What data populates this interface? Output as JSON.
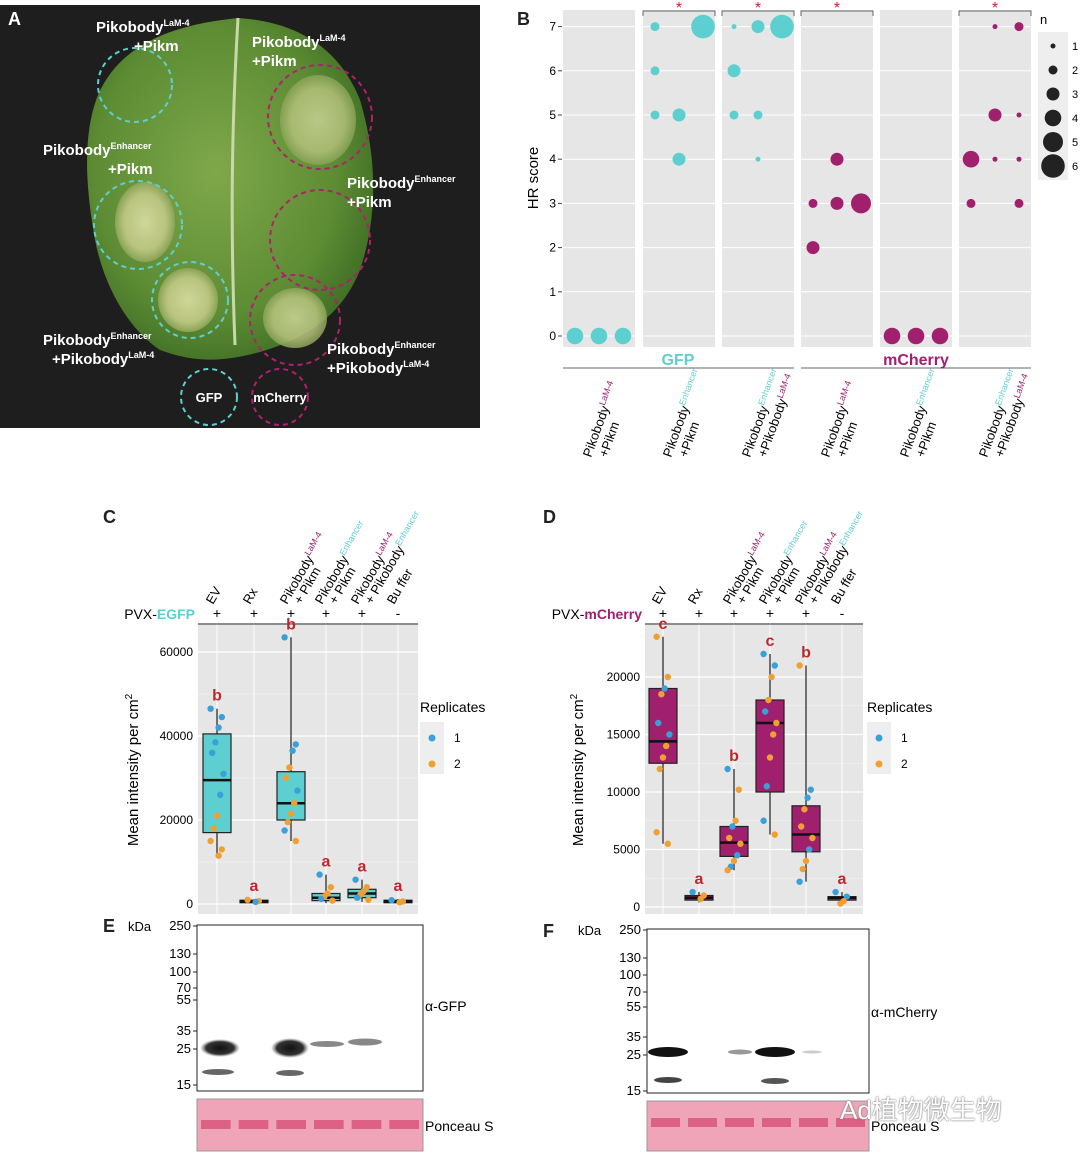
{
  "colors": {
    "gfp": "#5ecfd0",
    "mcherry": "#a0206e",
    "sig": "#c0272d",
    "rep1": "#3aa0d8",
    "rep2": "#f0a030",
    "panel_bg": "#e6e6e6"
  },
  "panel_labels": {
    "a": "A",
    "b": "B",
    "c": "C",
    "d": "D",
    "e": "E",
    "f": "F"
  },
  "panel_a": {
    "leaf_labels": [
      {
        "main": "Pikobody",
        "sup": "LaM-4",
        "line2": "+Pikm"
      },
      {
        "main": "Pikobody",
        "sup": "LaM-4",
        "line2": "+Pikm"
      },
      {
        "main": "Pikobody",
        "sup": "Enhancer",
        "line2": "+Pikm"
      },
      {
        "main": "Pikobody",
        "sup": "Enhancer",
        "line2": "+Pikm"
      },
      {
        "main": "Pikobody",
        "sup": "Enhancer",
        "line2": "+Pikobody",
        "sup2": "LaM-4"
      },
      {
        "main": "Pikobody",
        "sup": "Enhancer",
        "line2": "+Pikobody",
        "sup2": "LaM-4"
      }
    ],
    "legend": {
      "gfp": "GFP",
      "mcherry": "mCherry"
    }
  },
  "chart_data": [
    {
      "panel": "B",
      "type": "scatter",
      "ylabel": "HR score",
      "y_ticks": [
        "0",
        "1",
        "2",
        "3",
        "4",
        "5",
        "6",
        "7"
      ],
      "ylim": [
        0,
        7
      ],
      "groups": [
        {
          "name": "GFP",
          "color": "#5ecfd0"
        },
        {
          "name": "mCherry",
          "color": "#a0206e"
        }
      ],
      "facets": [
        {
          "label_main": "Pikobody",
          "label_sup": "LaM-4",
          "label_line2": "+Pikm",
          "group": "GFP",
          "significant": false,
          "points": [
            {
              "x": 1,
              "y": 0,
              "n": 4
            },
            {
              "x": 2,
              "y": 0,
              "n": 4
            },
            {
              "x": 3,
              "y": 0,
              "n": 4
            }
          ]
        },
        {
          "label_main": "Pikobody",
          "label_sup": "Enhancer",
          "label_line2": "+Pikm",
          "group": "GFP",
          "significant": true,
          "points": [
            {
              "x": 1,
              "y": 7,
              "n": 2
            },
            {
              "x": 3,
              "y": 7,
              "n": 6
            },
            {
              "x": 1,
              "y": 6,
              "n": 2
            },
            {
              "x": 1,
              "y": 5,
              "n": 2
            },
            {
              "x": 2,
              "y": 5,
              "n": 3
            },
            {
              "x": 2,
              "y": 4,
              "n": 3
            }
          ]
        },
        {
          "label_main": "Pikobody",
          "label_sup": "Enhancer",
          "label_line2": "+Pikobody",
          "label_sup2": "LaM-4",
          "group": "GFP",
          "significant": true,
          "points": [
            {
              "x": 1,
              "y": 7,
              "n": 1
            },
            {
              "x": 2,
              "y": 7,
              "n": 3
            },
            {
              "x": 3,
              "y": 7,
              "n": 6
            },
            {
              "x": 1,
              "y": 6,
              "n": 3
            },
            {
              "x": 1,
              "y": 5,
              "n": 2
            },
            {
              "x": 2,
              "y": 5,
              "n": 2
            },
            {
              "x": 2,
              "y": 4,
              "n": 1
            }
          ]
        },
        {
          "label_main": "Pikobody",
          "label_sup": "LaM-4",
          "label_line2": "+Pikm",
          "group": "mCherry",
          "significant": true,
          "points": [
            {
              "x": 2,
              "y": 4,
              "n": 3
            },
            {
              "x": 1,
              "y": 3,
              "n": 2
            },
            {
              "x": 2,
              "y": 3,
              "n": 3
            },
            {
              "x": 3,
              "y": 3,
              "n": 5
            },
            {
              "x": 1,
              "y": 2,
              "n": 3
            }
          ]
        },
        {
          "label_main": "Pikobody",
          "label_sup": "Enhancer",
          "label_line2": "+Pikm",
          "group": "mCherry",
          "significant": false,
          "points": [
            {
              "x": 1,
              "y": 0,
              "n": 4
            },
            {
              "x": 2,
              "y": 0,
              "n": 4
            },
            {
              "x": 3,
              "y": 0,
              "n": 4
            }
          ]
        },
        {
          "label_main": "Pikobody",
          "label_sup": "Enhancer",
          "label_line2": "+Pikobody",
          "label_sup2": "LaM-4",
          "group": "mCherry",
          "significant": true,
          "points": [
            {
              "x": 2,
              "y": 7,
              "n": 1
            },
            {
              "x": 3,
              "y": 7,
              "n": 2
            },
            {
              "x": 2,
              "y": 5,
              "n": 3
            },
            {
              "x": 3,
              "y": 5,
              "n": 1
            },
            {
              "x": 1,
              "y": 4,
              "n": 4
            },
            {
              "x": 2,
              "y": 4,
              "n": 1
            },
            {
              "x": 3,
              "y": 4,
              "n": 1
            },
            {
              "x": 1,
              "y": 3,
              "n": 2
            },
            {
              "x": 3,
              "y": 3,
              "n": 2
            }
          ]
        }
      ],
      "sig_marker": "*",
      "legend": {
        "title": "n",
        "entries": [
          "1",
          "2",
          "3",
          "4",
          "5",
          "6"
        ]
      }
    },
    {
      "panel": "C",
      "type": "box",
      "construct": "PVX-",
      "reporter": "EGFP",
      "ylabel": "Mean intensity per cm",
      "ylabel_sup": "2",
      "y_ticks": [
        "0",
        "20000",
        "40000",
        "60000"
      ],
      "ylim": [
        -2000,
        66000
      ],
      "fill": "#5ecfd0",
      "categories": [
        {
          "parts": [
            {
              "t": "EV"
            }
          ],
          "plus": "+"
        },
        {
          "parts": [
            {
              "t": "Rx"
            }
          ],
          "plus": "+"
        },
        {
          "parts": [
            {
              "t": "Pikobody"
            },
            {
              "t": "LaM-4",
              "c": "m"
            },
            {
              "t": "+ Pikm",
              "br": true
            }
          ],
          "plus": "+"
        },
        {
          "parts": [
            {
              "t": "Pikobody"
            },
            {
              "t": "Enhancer",
              "c": "g"
            },
            {
              "t": "+ Pikm",
              "br": true
            }
          ],
          "plus": "+"
        },
        {
          "parts": [
            {
              "t": "Pikobody"
            },
            {
              "t": "LaM-4",
              "c": "m"
            },
            {
              "t": "+ Pikobody",
              "br": true
            },
            {
              "t": "Enhancer",
              "c": "g"
            }
          ],
          "plus": "+"
        },
        {
          "parts": [
            {
              "t": "Bu ffer"
            }
          ],
          "plus": "-"
        }
      ],
      "boxes": [
        {
          "q1": 17000,
          "median": 29500,
          "q3": 40500,
          "lo": 11000,
          "hi": 46500,
          "letter": "b",
          "points": [
            [
              46500,
              1
            ],
            [
              44500,
              1
            ],
            [
              42000,
              1
            ],
            [
              38500,
              1
            ],
            [
              36000,
              1
            ],
            [
              31000,
              1
            ],
            [
              26000,
              1
            ],
            [
              21000,
              2
            ],
            [
              18000,
              2
            ],
            [
              15000,
              2
            ],
            [
              13000,
              2
            ],
            [
              11500,
              2
            ]
          ]
        },
        {
          "q1": 300,
          "median": 600,
          "q3": 900,
          "lo": 100,
          "hi": 1200,
          "letter": "a",
          "points": [
            [
              1000,
              2
            ],
            [
              700,
              2
            ],
            [
              500,
              1
            ]
          ]
        },
        {
          "q1": 20000,
          "median": 24000,
          "q3": 31500,
          "lo": 15000,
          "hi": 63500,
          "letter": "b",
          "points": [
            [
              63500,
              1
            ],
            [
              38000,
              1
            ],
            [
              36500,
              1
            ],
            [
              32500,
              2
            ],
            [
              30000,
              2
            ],
            [
              27000,
              1
            ],
            [
              24000,
              2
            ],
            [
              21500,
              2
            ],
            [
              19500,
              2
            ],
            [
              17500,
              1
            ],
            [
              15000,
              2
            ]
          ]
        },
        {
          "q1": 800,
          "median": 1500,
          "q3": 2500,
          "lo": 200,
          "hi": 7000,
          "letter": "a",
          "points": [
            [
              7000,
              1
            ],
            [
              4000,
              2
            ],
            [
              2500,
              2
            ],
            [
              1800,
              2
            ],
            [
              1200,
              1
            ],
            [
              800,
              2
            ]
          ]
        },
        {
          "q1": 1500,
          "median": 2500,
          "q3": 3500,
          "lo": 500,
          "hi": 5800,
          "letter": "a",
          "points": [
            [
              5800,
              1
            ],
            [
              4000,
              2
            ],
            [
              3000,
              2
            ],
            [
              2200,
              2
            ],
            [
              1500,
              1
            ],
            [
              1000,
              2
            ]
          ]
        },
        {
          "q1": 300,
          "median": 600,
          "q3": 900,
          "lo": 100,
          "hi": 1200,
          "letter": "a",
          "points": [
            [
              900,
              1
            ],
            [
              600,
              2
            ],
            [
              400,
              2
            ]
          ]
        }
      ],
      "legend": {
        "title": "Replicates",
        "entries": [
          "1",
          "2"
        ]
      }
    },
    {
      "panel": "D",
      "type": "box",
      "construct": "PVX-",
      "reporter": "mCherry",
      "ylabel": "Mean intensity per cm",
      "ylabel_sup": "2",
      "y_ticks": [
        "0",
        "5000",
        "10000",
        "15000",
        "20000"
      ],
      "ylim": [
        -300,
        24000
      ],
      "fill": "#a0206e",
      "categories": [
        {
          "parts": [
            {
              "t": "EV"
            }
          ],
          "plus": "+"
        },
        {
          "parts": [
            {
              "t": "Rx"
            }
          ],
          "plus": "+"
        },
        {
          "parts": [
            {
              "t": "Pikobody"
            },
            {
              "t": "LaM-4",
              "c": "m"
            },
            {
              "t": "+ Pikm",
              "br": true
            }
          ],
          "plus": "+"
        },
        {
          "parts": [
            {
              "t": "Pikobody"
            },
            {
              "t": "Enhancer",
              "c": "g"
            },
            {
              "t": "+ Pikm",
              "br": true
            }
          ],
          "plus": "+"
        },
        {
          "parts": [
            {
              "t": "Pikobody"
            },
            {
              "t": "LaM-4",
              "c": "m"
            },
            {
              "t": "+ Pikobody",
              "br": true
            },
            {
              "t": "Enhancer",
              "c": "g"
            }
          ],
          "plus": "+"
        },
        {
          "parts": [
            {
              "t": "Bu ffer"
            }
          ],
          "plus": "-"
        }
      ],
      "boxes": [
        {
          "q1": 12500,
          "median": 14400,
          "q3": 19000,
          "lo": 5500,
          "hi": 23500,
          "letter": "c",
          "points": [
            [
              23500,
              2
            ],
            [
              20000,
              2
            ],
            [
              19000,
              1
            ],
            [
              18500,
              2
            ],
            [
              16000,
              1
            ],
            [
              15000,
              1
            ],
            [
              14000,
              2
            ],
            [
              13000,
              2
            ],
            [
              12000,
              2
            ],
            [
              6500,
              2
            ],
            [
              5500,
              2
            ]
          ]
        },
        {
          "q1": 600,
          "median": 800,
          "q3": 1000,
          "lo": 400,
          "hi": 1300,
          "letter": "a",
          "points": [
            [
              1300,
              1
            ],
            [
              1000,
              2
            ],
            [
              700,
              2
            ]
          ]
        },
        {
          "q1": 4400,
          "median": 5600,
          "q3": 7000,
          "lo": 3200,
          "hi": 12000,
          "letter": "b",
          "points": [
            [
              12000,
              1
            ],
            [
              10200,
              2
            ],
            [
              7500,
              2
            ],
            [
              7000,
              1
            ],
            [
              6000,
              2
            ],
            [
              5500,
              2
            ],
            [
              4500,
              1
            ],
            [
              4000,
              2
            ],
            [
              3500,
              1
            ],
            [
              3200,
              2
            ]
          ]
        },
        {
          "q1": 10000,
          "median": 16000,
          "q3": 18000,
          "lo": 6300,
          "hi": 22000,
          "letter": "c",
          "points": [
            [
              22000,
              1
            ],
            [
              21000,
              1
            ],
            [
              20000,
              2
            ],
            [
              18000,
              2
            ],
            [
              17000,
              1
            ],
            [
              16000,
              2
            ],
            [
              15000,
              2
            ],
            [
              13000,
              2
            ],
            [
              10500,
              1
            ],
            [
              7500,
              1
            ],
            [
              6300,
              2
            ]
          ]
        },
        {
          "q1": 4800,
          "median": 6300,
          "q3": 8800,
          "lo": 2200,
          "hi": 21000,
          "letter": "b",
          "points": [
            [
              21000,
              2
            ],
            [
              10200,
              1
            ],
            [
              9500,
              1
            ],
            [
              8500,
              2
            ],
            [
              7000,
              2
            ],
            [
              6000,
              2
            ],
            [
              5000,
              1
            ],
            [
              4000,
              2
            ],
            [
              3300,
              2
            ],
            [
              2200,
              1
            ]
          ]
        },
        {
          "q1": 600,
          "median": 800,
          "q3": 900,
          "lo": 300,
          "hi": 1300,
          "letter": "a",
          "points": [
            [
              1300,
              1
            ],
            [
              900,
              1
            ],
            [
              500,
              2
            ],
            [
              300,
              2
            ]
          ]
        }
      ],
      "legend": {
        "title": "Replicates",
        "entries": [
          "1",
          "2"
        ]
      }
    }
  ],
  "panel_e": {
    "kda_label": "kDa",
    "markers": [
      "250",
      "130",
      "100",
      "70",
      "55",
      "35",
      "25",
      "15"
    ],
    "antibody": "α-GFP",
    "loading": "Ponceau S"
  },
  "panel_f": {
    "kda_label": "kDa",
    "markers": [
      "250",
      "130",
      "100",
      "70",
      "55",
      "35",
      "25",
      "15"
    ],
    "antibody": "α-mCherry",
    "loading": "Ponceau S"
  },
  "watermark": "Ad植物微生物"
}
